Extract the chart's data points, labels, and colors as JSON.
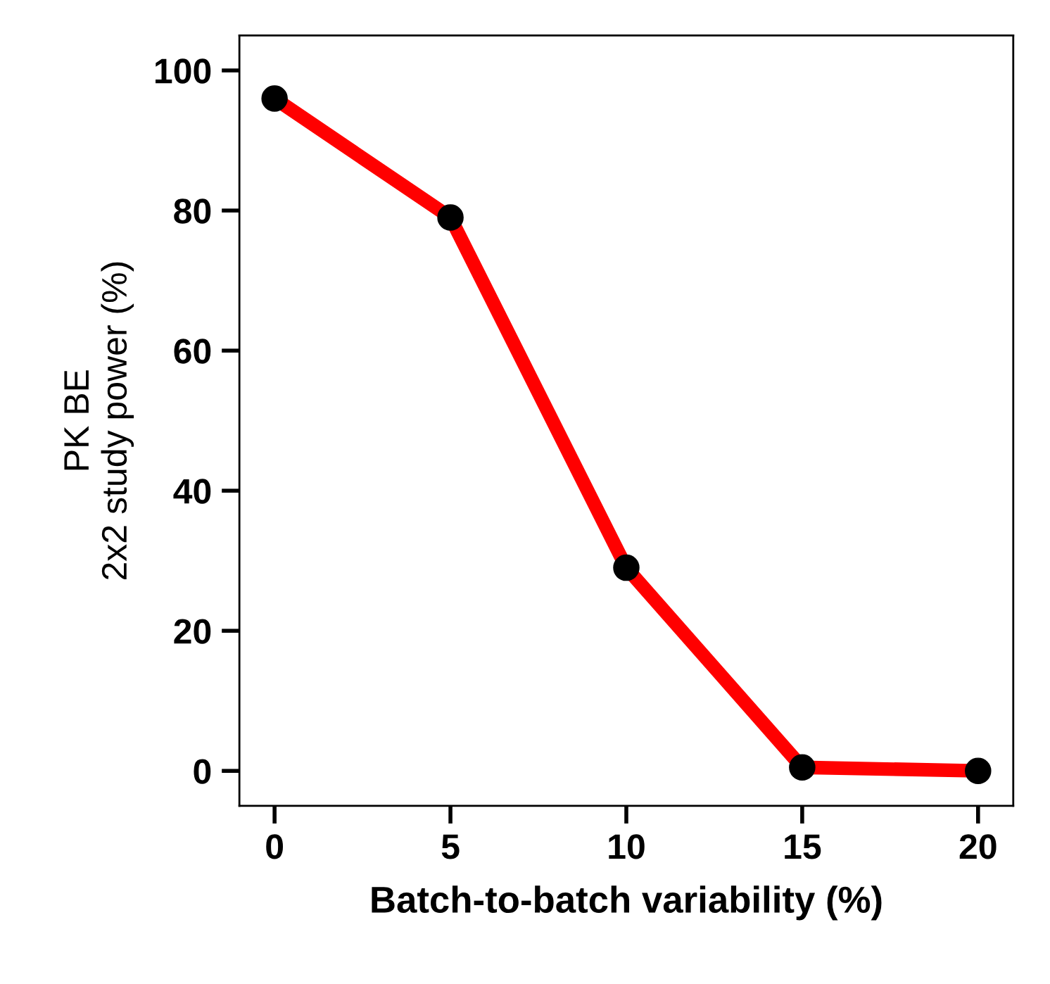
{
  "chart_data": {
    "type": "line",
    "xlabel": "Batch-to-batch variability (%)",
    "ylabel": "PK BE\n2x2 study power (%)",
    "x": [
      0,
      5,
      10,
      15,
      20
    ],
    "series": [
      {
        "color": "#ff0000",
        "values": [
          96,
          79,
          29,
          0.5,
          0
        ]
      }
    ],
    "xlim": [
      -1,
      21
    ],
    "xticks": [
      0,
      5,
      10,
      15,
      20
    ],
    "ylim": [
      -5,
      105
    ],
    "yticks": [
      0,
      20,
      40,
      60,
      80,
      100
    ],
    "marker": "circle",
    "line_style": "solid",
    "grid": false,
    "legend": false
  }
}
